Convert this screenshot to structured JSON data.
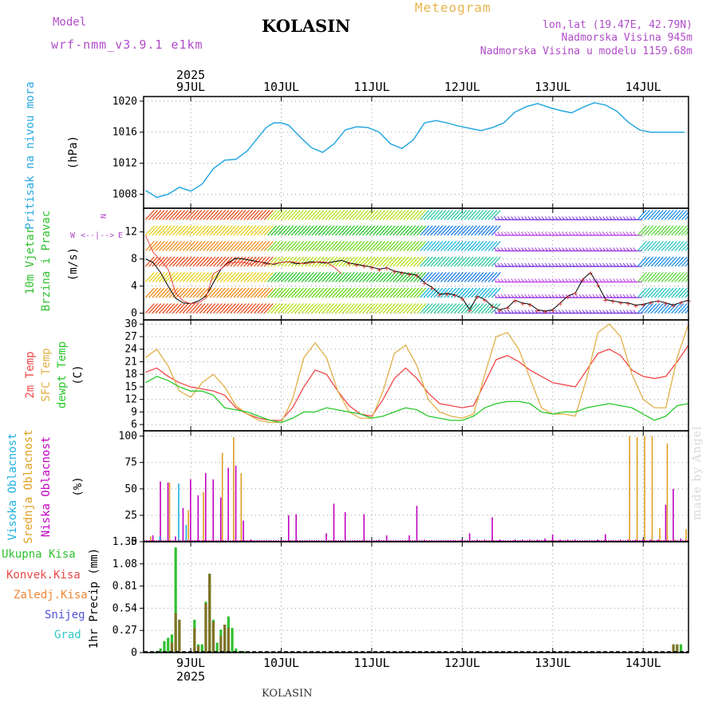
{
  "header": {
    "model_label": "Model",
    "model_value": "wrf-nmm_v3.9.1  e1km",
    "title": "KOLASIN",
    "meteogram": "Meteogram",
    "lonlat": "lon,lat (19.47E, 42.79N)",
    "elevation": "Nadmorska Visina 945m",
    "model_elevation": "Nadmorska Visina u modelu 1159.68m"
  },
  "bottom_title": "KOLASIN",
  "made_by": "made by Angel",
  "colors": {
    "pressure": "#29a8e0",
    "temp": "#f04848",
    "sfc_temp": "#e0b048",
    "dewpt": "#28c828",
    "low_cloud": "#c000c0",
    "mid_cloud": "#e0a020",
    "high_cloud": "#20b0e0",
    "total_precip": "#30c030",
    "conv_precip": "#e84848",
    "frz_precip": "#f08838",
    "snow": "#5050d8",
    "graupel": "#30c8c8",
    "wind_label": "#30c030",
    "pressure_label": "#29a8e0"
  },
  "time_axis": {
    "year": "2025",
    "days": [
      "9JUL",
      "10JUL",
      "11JUL",
      "12JUL",
      "13JUL",
      "14JUL"
    ],
    "start_offset_h": -12.5,
    "end_offset_h": 132
  },
  "chart_data": [
    {
      "type": "line",
      "name": "pressure",
      "labels": [
        "Pritisak na nivou mora",
        "(hPa)"
      ],
      "ylim": [
        1006.2,
        1020.6
      ],
      "yticks": [
        "1008",
        "1012",
        "1016",
        "1020"
      ],
      "ytick_values": [
        1008,
        1012,
        1016,
        1020
      ],
      "grid": true,
      "series": [
        {
          "name": "Pritisak na nivou mora",
          "x": [
            -12,
            -9,
            -6,
            -3,
            0,
            3,
            6,
            9,
            12,
            15,
            18,
            20,
            22,
            24,
            26,
            29,
            32,
            35,
            38,
            41,
            44,
            47,
            50,
            53,
            56,
            59,
            62,
            65,
            68,
            71,
            74,
            77,
            80,
            83,
            86,
            89,
            92,
            95,
            98,
            101,
            104,
            107,
            110,
            113,
            116,
            119,
            122,
            125,
            128,
            131
          ],
          "y": [
            1008.5,
            1007.6,
            1008,
            1008.9,
            1008.4,
            1009.3,
            1011.3,
            1012.4,
            1012.5,
            1013.6,
            1015.4,
            1016.6,
            1017.2,
            1017.2,
            1016.9,
            1015.4,
            1014,
            1013.4,
            1014.5,
            1016.3,
            1016.7,
            1016.6,
            1016,
            1014.5,
            1013.9,
            1015,
            1017.2,
            1017.5,
            1017.2,
            1016.8,
            1016.5,
            1016.2,
            1016.6,
            1017.2,
            1018.6,
            1019.3,
            1019.7,
            1019.2,
            1018.8,
            1018.5,
            1019.2,
            1019.8,
            1019.5,
            1018.7,
            1017.3,
            1016.3,
            1016.0,
            1016.0,
            1016.0,
            1016.0
          ]
        }
      ]
    },
    {
      "type": "line",
      "name": "wind",
      "labels": [
        "10m Vjetar",
        "Brzina i Pravac",
        "(m/s)"
      ],
      "ylim": [
        -1,
        15.5
      ],
      "yticks": [
        "0",
        "4",
        "8",
        "12"
      ],
      "ytick_values": [
        0,
        4,
        8,
        12
      ],
      "compass": [
        "W",
        "<--|-->",
        "E",
        "N"
      ],
      "grid": true,
      "series": [
        {
          "name": "wind speed",
          "x": [
            -12,
            -10,
            -8,
            -6,
            -4,
            -2,
            0,
            2,
            4,
            6,
            8,
            10,
            12,
            14,
            16,
            18,
            20,
            22,
            24,
            26,
            28,
            30,
            32,
            34,
            36,
            38,
            40,
            42,
            44,
            46,
            48,
            50,
            52,
            54,
            56,
            58,
            60,
            62,
            64,
            66,
            68,
            70,
            72,
            74,
            76,
            78,
            80,
            82,
            84,
            86,
            88,
            90,
            92,
            94,
            96,
            98,
            100,
            102,
            104,
            106,
            108,
            110,
            112,
            114,
            116,
            118,
            120,
            122,
            124,
            126,
            128,
            130,
            132
          ],
          "y": [
            8,
            7.5,
            6,
            4,
            2.2,
            1.5,
            1.4,
            1.8,
            2.5,
            4.5,
            6.5,
            7.5,
            8.1,
            8,
            7.8,
            7.6,
            7.4,
            7.2,
            7.5,
            7.6,
            7.3,
            7.4,
            7.6,
            7.5,
            7.4,
            7.6,
            7.8,
            7.4,
            7.2,
            7,
            6.8,
            6.5,
            6.7,
            6.2,
            6,
            5.8,
            5.6,
            4.5,
            3.8,
            2.8,
            2.9,
            2.7,
            2.2,
            0.5,
            2.5,
            2,
            1,
            0.5,
            0.8,
            1.9,
            1.5,
            1.3,
            0.5,
            0.3,
            0.5,
            1.5,
            2.5,
            3,
            5,
            6,
            4.2,
            2,
            1.8,
            1.6,
            1.5,
            1.2,
            1.3,
            1.6,
            1.8,
            1.5,
            1.2,
            1.6,
            1.9
          ]
        },
        {
          "name": "wind gust",
          "x": [
            -12,
            -10,
            -8,
            -6,
            -4,
            -2,
            0,
            2,
            4,
            6,
            8,
            10,
            12,
            14,
            16,
            18,
            20,
            22,
            24,
            26,
            28,
            30,
            32,
            34,
            36,
            38,
            40
          ],
          "y": [
            11.5,
            9,
            7.8,
            6.5,
            3,
            1.8,
            1.4,
            1.5,
            2.2,
            5.8,
            6.5,
            7.4,
            7.5,
            7.5,
            7.2,
            7.7,
            7.2,
            7.3,
            7.5,
            7.6,
            7.5,
            7.3,
            7.4,
            7.6,
            7.5,
            6.8,
            5.8
          ]
        }
      ]
    },
    {
      "type": "line",
      "name": "temperature",
      "labels": [
        "2m Temp",
        "SFC Temp",
        "dewpt Temp",
        "(C)"
      ],
      "ylim": [
        4.5,
        31
      ],
      "yticks": [
        "6",
        "9",
        "12",
        "15",
        "18",
        "21",
        "24",
        "27",
        "30"
      ],
      "ytick_values": [
        6,
        9,
        12,
        15,
        18,
        21,
        24,
        27,
        30
      ],
      "grid": true,
      "series": [
        {
          "name": "2m Temp",
          "x": [
            -12,
            -9,
            -6,
            -3,
            0,
            3,
            6,
            9,
            12,
            15,
            18,
            21,
            24,
            27,
            30,
            33,
            36,
            39,
            42,
            45,
            48,
            51,
            54,
            57,
            60,
            63,
            66,
            69,
            72,
            75,
            78,
            81,
            84,
            87,
            90,
            93,
            96,
            99,
            102,
            105,
            108,
            111,
            114,
            117,
            120,
            123,
            126,
            129,
            132
          ],
          "y": [
            18.5,
            19.5,
            17.5,
            16,
            15,
            14.5,
            14,
            13,
            10,
            8.5,
            7.5,
            7,
            7,
            10,
            15,
            19,
            18,
            14,
            10.5,
            8.5,
            8,
            12,
            17,
            19.5,
            17,
            13.5,
            11,
            10.5,
            10,
            10.5,
            16,
            21.5,
            22.5,
            21,
            19,
            17.5,
            16,
            15.5,
            15,
            19,
            23,
            24,
            22.5,
            19,
            17.5,
            17,
            17.5,
            21,
            25
          ]
        },
        {
          "name": "SFC Temp",
          "x": [
            -12,
            -9,
            -6,
            -3,
            0,
            3,
            6,
            9,
            12,
            15,
            18,
            21,
            24,
            27,
            30,
            33,
            36,
            39,
            42,
            45,
            48,
            51,
            54,
            57,
            60,
            63,
            66,
            69,
            72,
            75,
            78,
            81,
            84,
            87,
            90,
            93,
            96,
            99,
            102,
            105,
            108,
            111,
            114,
            117,
            120,
            123,
            126,
            129,
            132
          ],
          "y": [
            22,
            24,
            20,
            14,
            12.5,
            16,
            18,
            15,
            10.5,
            8.5,
            7,
            6.5,
            6.5,
            12,
            22,
            25.5,
            22,
            14,
            9,
            7.5,
            7.5,
            14,
            23,
            25,
            20,
            12,
            9,
            8,
            7.5,
            8.5,
            18,
            27,
            28,
            24,
            17,
            10,
            8.5,
            8.5,
            8,
            17,
            28,
            30,
            27,
            18,
            12,
            10,
            10,
            22,
            30
          ]
        },
        {
          "name": "dewpt Temp",
          "x": [
            -12,
            -9,
            -6,
            -3,
            0,
            3,
            6,
            9,
            12,
            15,
            18,
            21,
            24,
            27,
            30,
            33,
            36,
            39,
            42,
            45,
            48,
            51,
            54,
            57,
            60,
            63,
            66,
            69,
            72,
            75,
            78,
            81,
            84,
            87,
            90,
            93,
            96,
            99,
            102,
            105,
            108,
            111,
            114,
            117,
            120,
            123,
            126,
            129,
            132
          ],
          "y": [
            16,
            17.5,
            16.5,
            15,
            14,
            14,
            13,
            10,
            9.5,
            9,
            8,
            7,
            6.5,
            7.5,
            9,
            9,
            10,
            9.5,
            9,
            8.5,
            7.5,
            8,
            9,
            10,
            9.5,
            8,
            7.5,
            7,
            7,
            8,
            10,
            11,
            11.5,
            11.5,
            11,
            9,
            8.5,
            9,
            9,
            10,
            10.5,
            11,
            10.5,
            10,
            8.5,
            7,
            8,
            10.5,
            11
          ]
        }
      ]
    },
    {
      "type": "bar",
      "name": "cloud",
      "labels": [
        "Visoka Oblacnost",
        "Srednja Oblacnost",
        "Niska Oblacnost",
        "(%)"
      ],
      "ylim": [
        0,
        105
      ],
      "yticks": [
        "0",
        "25",
        "50",
        "75",
        "100"
      ],
      "ytick_values": [
        0,
        25,
        50,
        75,
        100
      ],
      "grid": true,
      "series": [
        {
          "name": "Niska Oblacnost",
          "x": [
            -10,
            -8,
            -6,
            -4,
            -2,
            0,
            2,
            4,
            6,
            8,
            10,
            12,
            14,
            16,
            18,
            22,
            26,
            28,
            36,
            38,
            41,
            46,
            50,
            52,
            58,
            60,
            62,
            64,
            66,
            68,
            70,
            72,
            74,
            76,
            78,
            80,
            82,
            86,
            88,
            90,
            92,
            94,
            96,
            98,
            100,
            102,
            104,
            108,
            110,
            112,
            114,
            116,
            118,
            120,
            122,
            124,
            126,
            128,
            130
          ],
          "y": [
            6,
            57,
            56,
            5,
            32,
            59,
            44,
            65,
            59,
            42,
            70,
            72,
            20,
            2,
            1,
            1,
            25,
            26,
            8,
            36,
            28,
            26,
            2,
            6,
            6,
            34,
            2,
            1,
            1,
            1,
            1,
            2,
            8,
            2,
            2,
            23,
            2,
            2,
            2,
            2,
            2,
            3,
            7,
            2,
            2,
            2,
            1,
            2,
            7,
            1,
            2,
            2,
            2,
            2,
            2,
            2,
            35,
            50,
            3
          ]
        },
        {
          "name": "Srednja Oblacnost",
          "x": [
            -11,
            -6,
            -1,
            3,
            8,
            11,
            13,
            116,
            118,
            120,
            122,
            124,
            126,
            128,
            131
          ],
          "y": [
            5,
            56,
            30,
            47,
            84,
            99,
            65,
            100,
            99,
            100,
            100,
            13,
            93,
            2,
            12
          ]
        },
        {
          "name": "Visoka Oblacnost",
          "x": [
            -9,
            -4,
            -2
          ],
          "y": [
            5,
            55,
            16
          ]
        }
      ]
    },
    {
      "type": "bar",
      "name": "precip",
      "labels": [
        "Ukupna  Kisa",
        "Konvek.Kisa",
        "Zaledj.Kisa",
        "Snijeg",
        "Grad",
        "1hr Precip  (mm)"
      ],
      "ylim": [
        0,
        1.35
      ],
      "yticks": [
        "0",
        "0.27",
        "0.54",
        "0.81",
        "1.08",
        "1.35"
      ],
      "ytick_values": [
        0,
        0.27,
        0.54,
        0.81,
        1.08,
        1.35
      ],
      "grid": true,
      "series": [
        {
          "name": "Ukupna  Kisa",
          "x": [
            -9,
            -8,
            -7,
            -6,
            -5,
            -4,
            -3,
            1,
            2,
            3,
            4,
            5,
            6,
            7,
            8,
            9,
            10,
            11,
            12,
            13,
            14,
            128,
            129,
            130
          ],
          "y": [
            0.02,
            0.05,
            0.14,
            0.18,
            0.22,
            1.28,
            0.4,
            0.4,
            0.1,
            0.1,
            0.62,
            0.96,
            0.4,
            0.12,
            0.28,
            0.34,
            0.44,
            0.3,
            0.05,
            0.02,
            0.02,
            0.1,
            0.1,
            0.1
          ]
        },
        {
          "name": "Konvek.Kisa",
          "x": [
            -5,
            -4,
            -3,
            1,
            2,
            4,
            5,
            6,
            8,
            9,
            10,
            128,
            129
          ],
          "y": [
            0.12,
            0.48,
            0.4,
            0.3,
            0.08,
            0.6,
            0.96,
            0.38,
            0.2,
            0.34,
            0.3,
            0.1,
            0.1
          ]
        }
      ]
    }
  ]
}
